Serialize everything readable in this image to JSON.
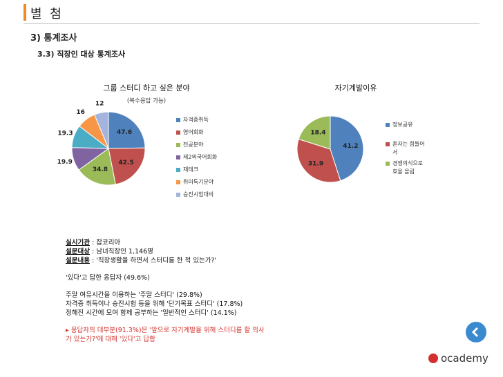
{
  "header": {
    "title": "별 첨",
    "section": "3) 통계조사",
    "subsection": "3.3) 직장인 대상 통계조사"
  },
  "chart_data": [
    {
      "type": "pie",
      "title": "그룹 스터디 하고 싶은 분야",
      "subtitle": "(복수응답 가능)",
      "categories": [
        "자격증취득",
        "영어회화",
        "전공분야",
        "제2외국어회화",
        "재테크",
        "취미특기분야",
        "승진시험대비"
      ],
      "values": [
        47.6,
        42.5,
        34.8,
        19.9,
        19.3,
        16,
        12
      ],
      "colors": [
        "#4f81bd",
        "#c0504d",
        "#9bbb59",
        "#8064a2",
        "#4bacc6",
        "#f79646",
        "#a5b4dc"
      ]
    },
    {
      "type": "pie",
      "title": "자기계발이유",
      "categories": [
        "정보공유",
        "혼자는 힘들어서",
        "경쟁의식으로 효율 올림"
      ],
      "values": [
        41.2,
        31.9,
        18.4
      ],
      "colors": [
        "#4f81bd",
        "#c0504d",
        "#9bbb59"
      ]
    }
  ],
  "survey": [
    {
      "label": "실시기관",
      "text": " : 잡코리아"
    },
    {
      "label": "설문대상",
      "text": " : 남녀직장인 1,146명"
    },
    {
      "label": "설문내용",
      "text": " : '직장생활을 하면서 스터디를 한 적 있는가?'"
    }
  ],
  "answer": "'있다'고 답한 응답자 (49.6%)",
  "results": [
    "주말 여유시간을 이용하는 '주말 스터디' (29.8%)",
    "자격증 취득이나 승진시험 등을 위해 '단기목표 스터디' (17.8%)",
    "정해진 시간에 모여 함께 공부하는 '일반적인 스터디' (14.1%)"
  ],
  "conclusion": "▸ 응답자의 대부분(91.3%)은 '앞으로 자기계발을 위해 스터디를 할 의사가 있는가?'에 대해 '있다'고 답함",
  "logo": "ocademy"
}
